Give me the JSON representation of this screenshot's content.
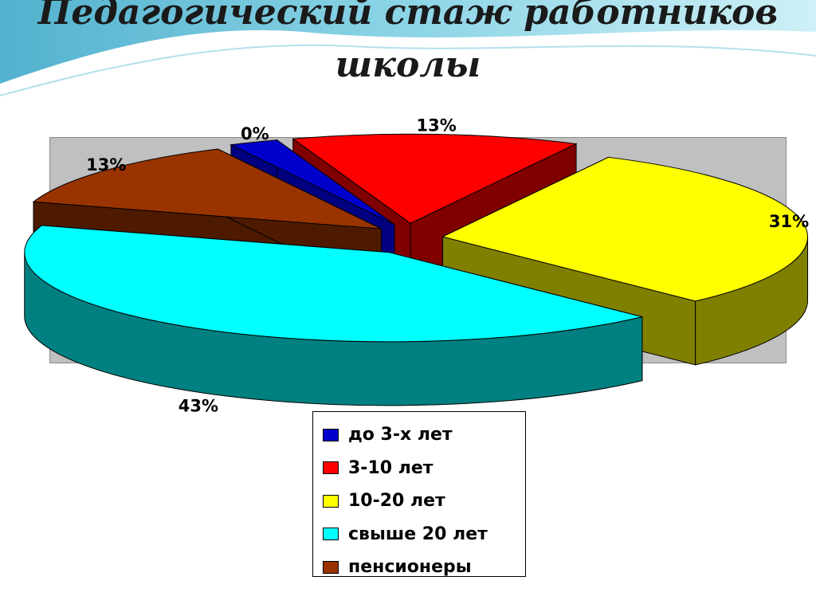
{
  "slide": {
    "title_line1": "Педагогический стаж работников",
    "title_line2": "школы"
  },
  "chart_data": {
    "type": "pie",
    "title": "Педагогический стаж работников школы",
    "categories": [
      "до 3-х лет",
      "3-10 лет",
      "10-20 лет",
      "свыше 20 лет",
      "пенсионеры"
    ],
    "values": [
      0,
      13,
      31,
      43,
      13
    ],
    "data_labels": [
      "0%",
      "13%",
      "31%",
      "43%",
      "13%"
    ],
    "colors": [
      "#0000cc",
      "#ff0000",
      "#ffff00",
      "#00ffff",
      "#993300"
    ],
    "side_colors": [
      "#000080",
      "#800000",
      "#808000",
      "#008080",
      "#4d1a00"
    ],
    "exploded": true,
    "three_d": true,
    "plot_background": "#c0c0c0",
    "legend_position": "bottom"
  }
}
